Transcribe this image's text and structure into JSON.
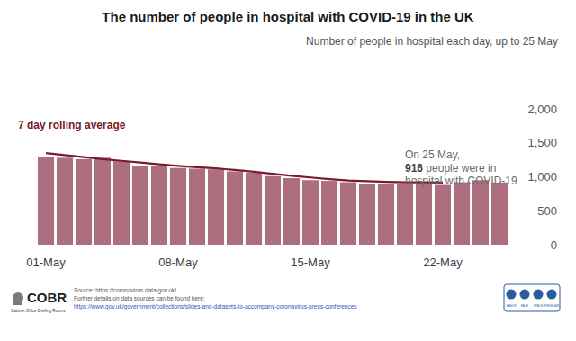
{
  "chart_data": {
    "type": "bar",
    "title": "The number of people in hospital with COVID-19 in the UK",
    "subtitle": "Number of people in hospital each day, up to 25 May",
    "categories": [
      "01-May",
      null,
      null,
      null,
      null,
      null,
      null,
      "08-May",
      null,
      null,
      null,
      null,
      null,
      null,
      "15-May",
      null,
      null,
      null,
      null,
      null,
      null,
      "22-May",
      null,
      null,
      null
    ],
    "series": [
      {
        "type": "bar",
        "color": "#ad6e7f",
        "values": [
          1290,
          1280,
          1260,
          1280,
          1230,
          1160,
          1160,
          1130,
          1120,
          1110,
          1080,
          1060,
          1010,
          980,
          950,
          940,
          920,
          900,
          890,
          900,
          910,
          880,
          920,
          950,
          916
        ]
      },
      {
        "name": "7 day rolling average",
        "type": "line",
        "color": "#7a1a2c",
        "line_style": "solid",
        "values": [
          1350,
          1320,
          1290,
          1260,
          1235,
          1210,
          1185,
          1160,
          1140,
          1125,
          1100,
          1075,
          1045,
          1015,
          990,
          965,
          945,
          935,
          925,
          920,
          920,
          915,
          null,
          null,
          null
        ]
      }
    ],
    "ylim": [
      0,
      2000
    ],
    "yticks": [
      0,
      500,
      {
        "value": 1000,
        "label": "1,000"
      },
      {
        "value": 1500,
        "label": "1,500"
      },
      {
        "value": 2000,
        "label": "2,000"
      }
    ],
    "grid": false,
    "annotation": [
      "On 25 May,",
      "916 people were in",
      "hospital with COVID-19"
    ],
    "annotation_bold": "916",
    "footer": {
      "logo": "COBR",
      "logo_subtitle": "Cabinet Office Briefing Rooms",
      "source": "Source: https://coronavirus.data.gov.uk/",
      "details": "Further details on data sources can be found here:",
      "details_link": "https://www.gov.uk/government/collections/slides-and-datasets-to-accompany-coronavirus-press-conferences",
      "badge": [
        "HANDS",
        "FACE",
        "SPACE",
        "FRESH AIR"
      ]
    }
  }
}
